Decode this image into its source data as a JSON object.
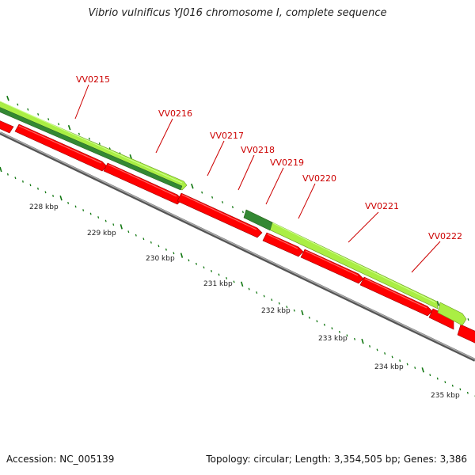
{
  "title": "Vibrio vulnificus YJ016 chromosome I, complete sequence",
  "footer": {
    "accession": "Accession: NC_005139",
    "summary": "Topology: circular; Length: 3,354,505 bp; Genes: 3,386"
  },
  "kbp_labels": [
    "228 kbp",
    "229 kbp",
    "230 kbp",
    "231 kbp",
    "232 kbp",
    "233 kbp",
    "234 kbp",
    "235 kbp"
  ],
  "gene_labels": [
    "VV0215",
    "VV0216",
    "VV0217",
    "VV0218",
    "VV0219",
    "VV0220",
    "VV0221",
    "VV0222"
  ],
  "colors": {
    "forward_cds": "#aaee44",
    "forward_cds_dark": "#338833",
    "reverse_cds": "#ff0000",
    "backbone": "#888888",
    "ticks": "#117711",
    "label": "#cc0000"
  }
}
